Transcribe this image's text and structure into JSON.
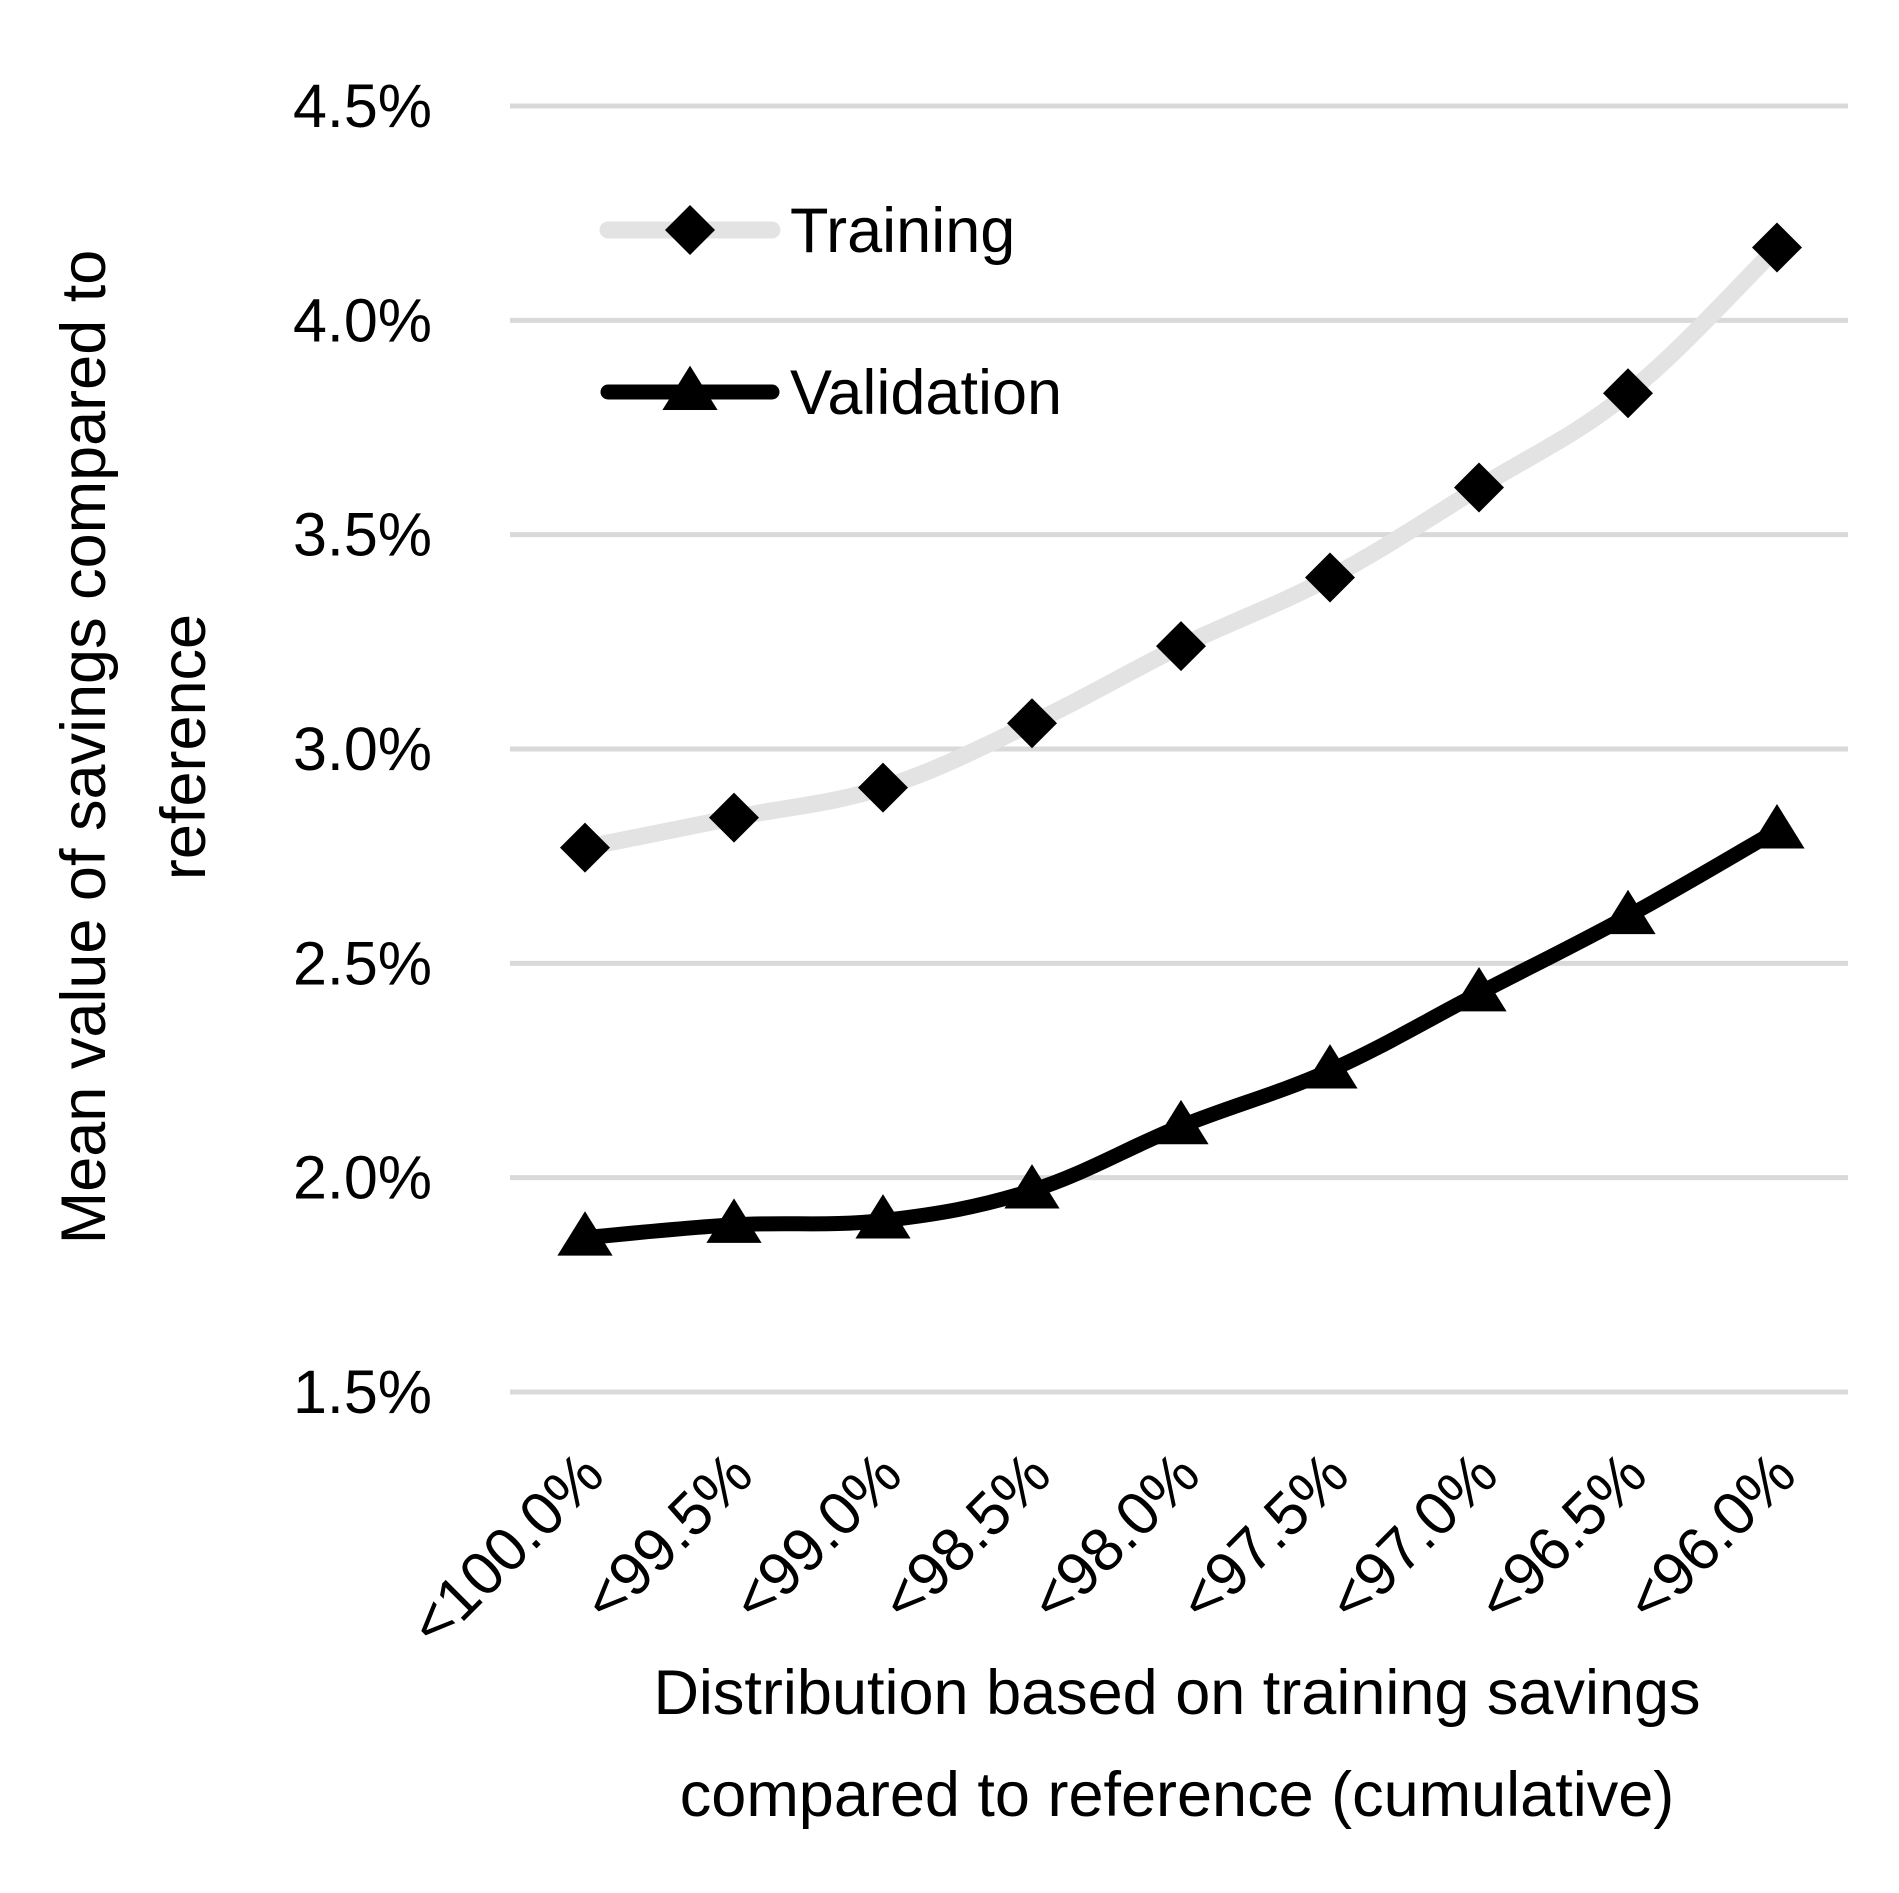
{
  "chart_data": {
    "type": "line",
    "title": "",
    "categories": [
      "<100.0%",
      "<99.5%",
      "<99.0%",
      "<98.5%",
      "<98.0%",
      "<97.5%",
      "<97.0%",
      "<96.5%",
      "<96.0%"
    ],
    "series": [
      {
        "name": "Training",
        "marker": "diamond",
        "color": "#e3e3e3",
        "marker_color": "#000000",
        "values": [
          0.0277,
          0.0284,
          0.0291,
          0.0306,
          0.0324,
          0.034,
          0.0361,
          0.0383,
          0.0417
        ]
      },
      {
        "name": "Validation",
        "marker": "triangle",
        "color": "#000000",
        "marker_color": "#000000",
        "values": [
          0.0186,
          0.0189,
          0.019,
          0.0197,
          0.0212,
          0.0225,
          0.0243,
          0.0261,
          0.0281
        ]
      }
    ],
    "ylim": [
      0.015,
      0.045
    ],
    "yticks": [
      "1.5%",
      "2.0%",
      "2.5%",
      "3.0%",
      "3.5%",
      "4.0%",
      "4.5%"
    ],
    "ylabel_lines": [
      "Mean value of savings compared to",
      "reference"
    ],
    "xlabel_lines": [
      "Distribution based on training savings",
      "compared to reference (cumulative)"
    ],
    "grid": true,
    "gridline_color": "#d9d9d9",
    "legend_position": "top-left"
  }
}
